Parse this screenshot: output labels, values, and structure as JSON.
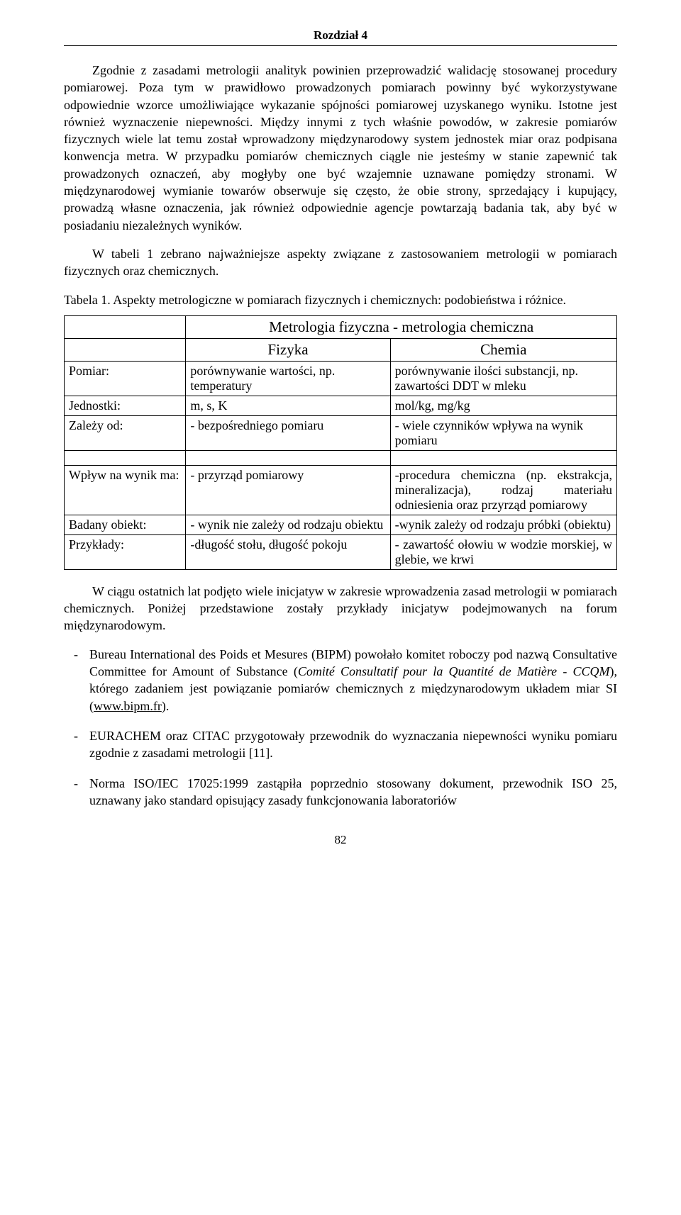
{
  "chapter_header": "Rozdział 4",
  "para1": "Zgodnie z zasadami metrologii analityk powinien przeprowadzić walidację stosowanej procedury pomiarowej. Poza tym w prawidłowo prowadzonych pomiarach powinny być wykorzystywane odpowiednie wzorce umożliwiające wykazanie spójności pomiarowej uzyskanego wyniku. Istotne jest również wyznaczenie niepewności. Między innymi z tych właśnie powodów, w zakresie pomiarów fizycznych wiele lat temu został wprowadzony międzynarodowy system jednostek miar oraz podpisana konwencja metra. W przypadku pomiarów chemicznych ciągle nie jesteśmy w stanie zapewnić tak prowadzonych oznaczeń, aby mogłyby one być wzajemnie uznawane pomiędzy stronami. W międzynarodowej wymianie towarów obserwuje się często, że obie strony, sprzedający i kupujący, prowadzą własne oznaczenia, jak również odpowiednie agencje powtarzają badania tak, aby być w posiadaniu niezależnych wyników.",
  "para2": "W tabeli 1 zebrano najważniejsze aspekty związane z zastosowaniem metrologii w pomiarach fizycznych oraz chemicznych.",
  "table_caption": "Tabela 1. Aspekty metrologiczne w pomiarach fizycznych i chemicznych: podobieństwa i różnice.",
  "table": {
    "title": "Metrologia fizyczna - metrologia chemiczna",
    "col_physics": "Fizyka",
    "col_chemistry": "Chemia",
    "row_pomiar_label": "Pomiar:",
    "row_pomiar_f": "porównywanie wartości, np. temperatury",
    "row_pomiar_c": "porównywanie ilości substancji, np. zawartości DDT w mleku",
    "row_jednostki_label": "Jednostki:",
    "row_jednostki_f": "m, s, K",
    "row_jednostki_c": "mol/kg, mg/kg",
    "row_zalezy_label": "Zależy od:",
    "row_zalezy_f": "- bezpośredniego pomiaru",
    "row_zalezy_c": "- wiele czynników wpływa na wynik pomiaru",
    "row_wplyw_label": "Wpływ na wynik ma:",
    "row_wplyw_f": "- przyrząd pomiarowy",
    "row_wplyw_c": "-procedura chemiczna (np. ekstrakcja, mineralizacja), rodzaj materiału odniesienia oraz przyrząd pomiarowy",
    "row_badany_label": "Badany obiekt:",
    "row_badany_f": "- wynik nie zależy od rodzaju obiektu",
    "row_badany_c": "-wynik zależy od rodzaju próbki (obiektu)",
    "row_przyklady_label": "Przykłady:",
    "row_przyklady_f": "-długość stołu, długość pokoju",
    "row_przyklady_c": "- zawartość ołowiu w wodzie morskiej, w glebie, we krwi"
  },
  "para3": "W ciągu ostatnich lat podjęto wiele inicjatyw w zakresie wprowadzenia zasad metrologii w pomiarach chemicznych. Poniżej przedstawione zostały przykłady inicjatyw podejmowanych na forum międzynarodowym.",
  "bullets": {
    "b1_pre": "Bureau International des Poids et Mesures (BIPM) powołało komitet roboczy pod nazwą Consultative Committee for Amount of Substance (",
    "b1_it": "Comité Consultatif pour la Quantité de Matière - CCQM",
    "b1_mid": "), którego zadaniem jest powiązanie pomiarów chemicznych z międzynarodowym układem miar SI (",
    "b1_link": "www.bipm.fr",
    "b1_post": ").",
    "b2": "EURACHEM oraz CITAC przygotowały przewodnik do wyznaczania niepewności wyniku pomiaru zgodnie z zasadami metrologii [11].",
    "b3": "Norma ISO/IEC 17025:1999 zastąpiła poprzednio stosowany dokument, przewodnik ISO 25, uznawany jako standard opisujący zasady funkcjonowania laboratoriów"
  },
  "page_number": "82",
  "colors": {
    "text": "#000000",
    "background": "#ffffff",
    "border": "#000000"
  }
}
